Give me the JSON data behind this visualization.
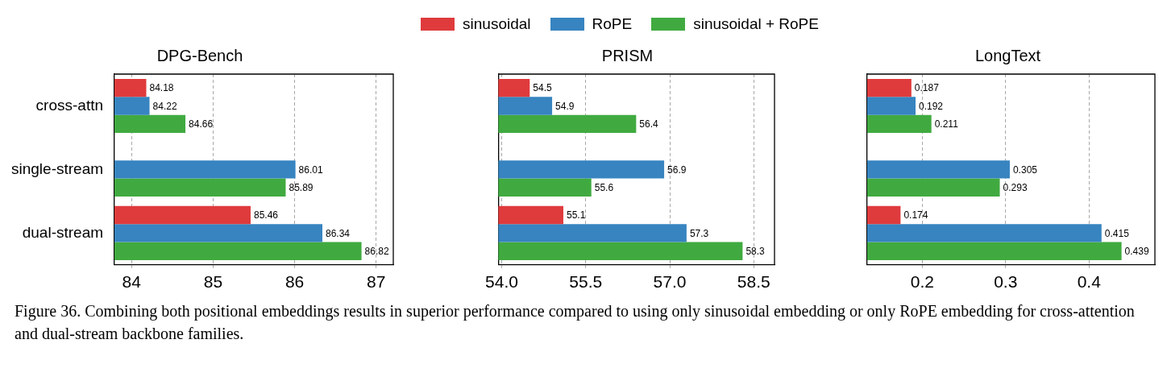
{
  "chart_data": [
    {
      "type": "bar",
      "orientation": "horizontal",
      "title": "DPG-Bench",
      "categories": [
        "cross-attn",
        "single-stream",
        "dual-stream"
      ],
      "series": [
        {
          "name": "sinusoidal",
          "color": "#df3b3d",
          "values": [
            84.18,
            null,
            85.46
          ]
        },
        {
          "name": "RoPE",
          "color": "#3784c0",
          "values": [
            84.22,
            86.01,
            86.34
          ]
        },
        {
          "name": "sinusoidal + RoPE",
          "color": "#40aa40",
          "values": [
            84.66,
            85.89,
            86.82
          ]
        }
      ],
      "xlim": [
        83.79,
        87.21
      ],
      "xticks": [
        84,
        85,
        86,
        87
      ],
      "grid": "x",
      "legend": "top",
      "data_labels": true,
      "annotations": [
        "Figure 36. Combining both positional embeddings results in superior performance compared to using only sinusoidal embedding or only RoPE embedding for cross-attention and dual-stream backbone families."
      ]
    },
    {
      "type": "bar",
      "orientation": "horizontal",
      "title": "PRISM",
      "categories": [
        null,
        null,
        null
      ],
      "series": [
        {
          "color": "#df3b3d",
          "values": [
            54.5,
            null,
            55.1
          ]
        },
        {
          "color": "#3784c0",
          "values": [
            54.9,
            56.9,
            57.3
          ]
        },
        {
          "color": "#40aa40",
          "values": [
            56.4,
            55.6,
            58.3
          ]
        }
      ],
      "xlim": [
        53.94,
        58.87
      ],
      "xticks": [
        {
          "value": 54,
          "label": "54.0"
        },
        55.5,
        {
          "value": 57,
          "label": "57.0"
        },
        58.5
      ],
      "grid": "x",
      "data_labels": true,
      "tick_labels": "x"
    },
    {
      "type": "bar",
      "orientation": "horizontal",
      "title": "LongText",
      "categories": [
        null,
        null,
        null
      ],
      "series": [
        {
          "color": "#df3b3d",
          "values": [
            0.187,
            null,
            0.174
          ]
        },
        {
          "color": "#3784c0",
          "values": [
            0.192,
            0.305,
            0.415
          ]
        },
        {
          "color": "#40aa40",
          "values": [
            0.211,
            0.293,
            0.439
          ]
        }
      ],
      "xlim": [
        0.134,
        0.479
      ],
      "xticks": [
        0.2,
        0.3,
        0.4
      ],
      "grid": "x",
      "data_labels": true,
      "tick_labels": "x"
    }
  ]
}
